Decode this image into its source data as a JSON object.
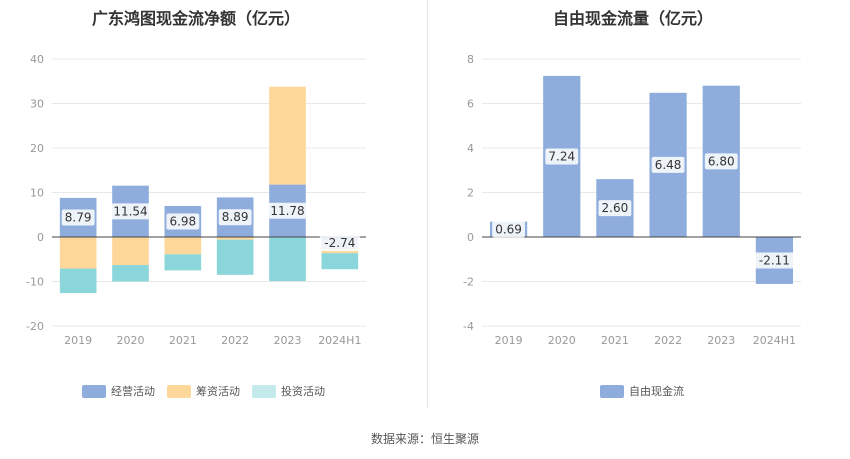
{
  "source_label": "数据来源：恒生聚源",
  "colors": {
    "operating": "#8EADDC",
    "financing": "#FED89A",
    "investing": "#8AD6DA",
    "fcf": "#8EADDC",
    "label_bg": "#ffffff"
  },
  "chart_data": [
    {
      "type": "stacked-bar",
      "title": "广东鸿图现金流净额（亿元）",
      "categories": [
        "2019",
        "2020",
        "2021",
        "2022",
        "2023",
        "2024H1"
      ],
      "ylim": [
        -20,
        40
      ],
      "yticks": [
        "40",
        "30",
        "20",
        "10",
        "0",
        "-10",
        "-20"
      ],
      "series": [
        {
          "name": "经营活动",
          "values": [
            8.79,
            11.54,
            6.98,
            8.89,
            11.78,
            -2.74
          ]
        },
        {
          "name": "筹资活动",
          "values": [
            -7.1,
            -6.3,
            -3.9,
            -0.6,
            22.0,
            -0.9
          ]
        },
        {
          "name": "投资活动",
          "values": [
            -5.5,
            -3.7,
            -3.6,
            -7.9,
            -9.9,
            -3.6
          ]
        }
      ],
      "data_labels": [
        "8.79",
        "11.54",
        "6.98",
        "8.89",
        "11.78",
        "-2.74"
      ]
    },
    {
      "type": "bar",
      "title": "自由现金流量（亿元）",
      "categories": [
        "2019",
        "2020",
        "2021",
        "2022",
        "2023",
        "2024H1"
      ],
      "ylim": [
        -4,
        8
      ],
      "yticks": [
        "8",
        "6",
        "4",
        "2",
        "0",
        "-2",
        "-4"
      ],
      "series": [
        {
          "name": "自由现金流",
          "values": [
            0.69,
            7.24,
            2.6,
            6.48,
            6.8,
            -2.11
          ]
        }
      ],
      "data_labels": [
        "0.69",
        "7.24",
        "2.60",
        "6.48",
        "6.80",
        "-2.11"
      ]
    }
  ]
}
